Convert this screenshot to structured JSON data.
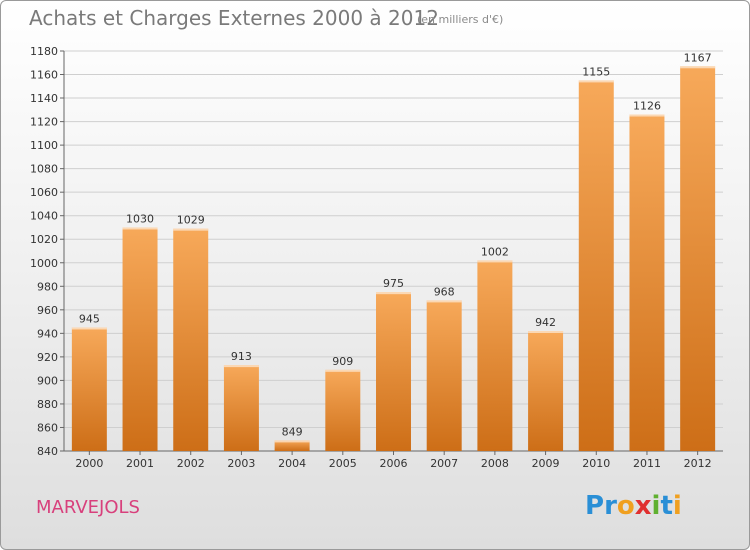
{
  "header": {
    "title": "Achats et Charges Externes 2000 à 2012",
    "unit": "(en milliers d'€)"
  },
  "footer": {
    "city": "MARVEJOLS",
    "brand_letters": [
      "P",
      "r",
      "o",
      "x",
      "i",
      "t",
      "i"
    ],
    "brand_colors": [
      "#2a8fd6",
      "#2a8fd6",
      "#f0a020",
      "#e03030",
      "#60b030",
      "#2a8fd6",
      "#f0a020"
    ]
  },
  "colors": {
    "bar_light": "#f7a95a",
    "bar_dark": "#cd6e17",
    "grid": "#cfcfcf",
    "city": "#d8407c"
  },
  "chart_data": {
    "type": "bar",
    "title": "Achats et Charges Externes 2000 à 2012",
    "categories": [
      "2000",
      "2001",
      "2002",
      "2003",
      "2004",
      "2005",
      "2006",
      "2007",
      "2008",
      "2009",
      "2010",
      "2011",
      "2012"
    ],
    "values": [
      945,
      1030,
      1029,
      913,
      849,
      909,
      975,
      968,
      1002,
      942,
      1155,
      1126,
      1167
    ],
    "ylim": [
      840,
      1180
    ],
    "yticks": [
      840,
      860,
      880,
      900,
      920,
      940,
      960,
      980,
      1000,
      1020,
      1040,
      1060,
      1080,
      1100,
      1120,
      1140,
      1160,
      1180
    ],
    "grid": true
  }
}
